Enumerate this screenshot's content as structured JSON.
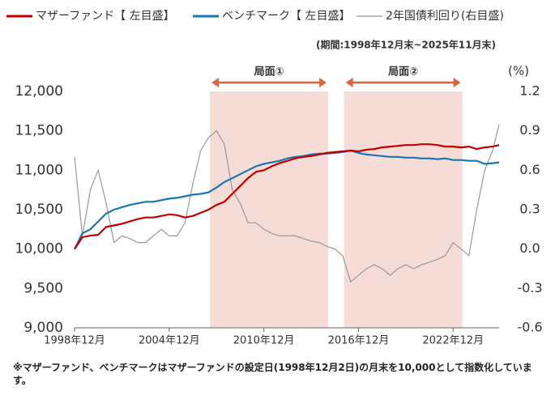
{
  "chart_data": {
    "type": "line",
    "period": "(期間:1998年12月末~2025年11月末)",
    "y2_label": "(%)",
    "note": "※マザーファンド、ベンチマークはマザーファンドの設定日(1998年12月2日)の月末を10,000として指数化しています。",
    "x": [
      "1998-12",
      "1999-06",
      "1999-12",
      "2000-06",
      "2000-12",
      "2001-06",
      "2001-12",
      "2002-06",
      "2002-12",
      "2003-06",
      "2003-12",
      "2004-06",
      "2004-12",
      "2005-06",
      "2005-12",
      "2006-06",
      "2006-12",
      "2007-06",
      "2007-12",
      "2008-06",
      "2008-12",
      "2009-06",
      "2009-12",
      "2010-06",
      "2010-12",
      "2011-06",
      "2011-12",
      "2012-06",
      "2012-12",
      "2013-06",
      "2013-12",
      "2014-06",
      "2014-12",
      "2015-06",
      "2015-12",
      "2016-06",
      "2016-12",
      "2017-06",
      "2017-12",
      "2018-06",
      "2018-12",
      "2019-06",
      "2019-12",
      "2020-06",
      "2020-12",
      "2021-06",
      "2021-12",
      "2022-06",
      "2022-12",
      "2023-06",
      "2023-12",
      "2024-06",
      "2024-12",
      "2025-06",
      "2025-11"
    ],
    "xlim": [
      "1998-12",
      "2025-11"
    ],
    "xticks": [
      {
        "value": "1998-12",
        "label": "1998年12月"
      },
      {
        "value": "2004-12",
        "label": "2004年12月"
      },
      {
        "value": "2010-12",
        "label": "2010年12月"
      },
      {
        "value": "2016-12",
        "label": "2016年12月"
      },
      {
        "value": "2022-12",
        "label": "2022年12月"
      }
    ],
    "ylim": [
      9000,
      12000
    ],
    "yticks": [
      {
        "value": 9000,
        "label": "9,000"
      },
      {
        "value": 9500,
        "label": "9,500"
      },
      {
        "value": 10000,
        "label": "10,000"
      },
      {
        "value": 10500,
        "label": "10,500"
      },
      {
        "value": 11000,
        "label": "11,000"
      },
      {
        "value": 11500,
        "label": "11,500"
      },
      {
        "value": 12000,
        "label": "12,000"
      }
    ],
    "y2lim": [
      -0.6,
      1.2
    ],
    "y2ticks": [
      -0.6,
      -0.3,
      0.0,
      0.3,
      0.6,
      0.9,
      1.2
    ],
    "phases": [
      {
        "label": "局面①",
        "start": "2007-07",
        "end": "2015-01"
      },
      {
        "label": "局面②",
        "start": "2016-01",
        "end": "2023-07"
      }
    ],
    "series": [
      {
        "name": "マザーファンド【 左目盛】",
        "color": "#c00000",
        "values": [
          10000,
          10150,
          10170,
          10180,
          10280,
          10300,
          10320,
          10350,
          10380,
          10400,
          10400,
          10420,
          10440,
          10430,
          10400,
          10420,
          10460,
          10500,
          10560,
          10600,
          10700,
          10800,
          10900,
          10980,
          11000,
          11050,
          11090,
          11120,
          11150,
          11170,
          11180,
          11200,
          11220,
          11230,
          11240,
          11250,
          11240,
          11260,
          11270,
          11290,
          11300,
          11310,
          11320,
          11320,
          11330,
          11330,
          11320,
          11300,
          11300,
          11290,
          11300,
          11270,
          11290,
          11300,
          11320
        ]
      },
      {
        "name": "ベンチマーク【 左目盛】",
        "color": "#1a75b0",
        "values": [
          10000,
          10200,
          10250,
          10350,
          10450,
          10500,
          10530,
          10560,
          10580,
          10600,
          10600,
          10620,
          10640,
          10650,
          10670,
          10690,
          10700,
          10720,
          10780,
          10850,
          10900,
          10950,
          11000,
          11050,
          11080,
          11100,
          11120,
          11150,
          11170,
          11180,
          11200,
          11210,
          11210,
          11220,
          11230,
          11250,
          11220,
          11200,
          11190,
          11180,
          11170,
          11170,
          11160,
          11160,
          11150,
          11150,
          11140,
          11150,
          11130,
          11130,
          11120,
          11120,
          11080,
          11090,
          11100
        ]
      },
      {
        "name": "2年国債利回り(右目盛)",
        "color": "#999999",
        "axis": "y2",
        "values": [
          0.7,
          0.1,
          0.45,
          0.6,
          0.35,
          0.05,
          0.1,
          0.08,
          0.05,
          0.05,
          0.1,
          0.15,
          0.1,
          0.1,
          0.2,
          0.5,
          0.75,
          0.85,
          0.9,
          0.8,
          0.45,
          0.35,
          0.2,
          0.2,
          0.15,
          0.12,
          0.1,
          0.1,
          0.1,
          0.08,
          0.06,
          0.05,
          0.02,
          0.0,
          -0.05,
          -0.25,
          -0.2,
          -0.15,
          -0.12,
          -0.15,
          -0.2,
          -0.15,
          -0.12,
          -0.15,
          -0.12,
          -0.1,
          -0.08,
          -0.05,
          0.05,
          0.0,
          -0.05,
          0.3,
          0.6,
          0.75,
          0.95
        ]
      }
    ]
  }
}
